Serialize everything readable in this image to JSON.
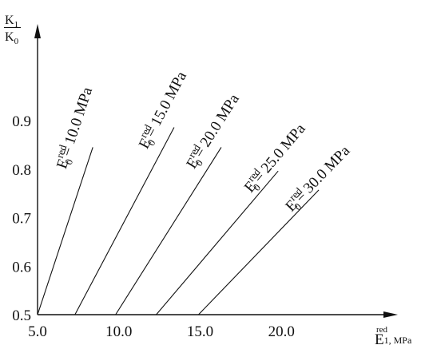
{
  "chart_data": {
    "type": "line",
    "x_ticks": [
      "5.0",
      "10.0",
      "15.0",
      "20.0"
    ],
    "y_ticks": [
      "0.5",
      "0.6",
      "0.7",
      "0.8",
      "0.9"
    ],
    "xlim": [
      5.0,
      24.0
    ],
    "ylim": [
      0.5,
      1.1
    ],
    "grid": false,
    "ylabel": {
      "num_base": "K",
      "num_sub": "1",
      "den_base": "K",
      "den_sub": "0"
    },
    "xlabel": {
      "base": "E",
      "sub": "1, MPa",
      "sup": "red"
    },
    "series": [
      {
        "name": {
          "base": "E",
          "sub": "0",
          "sup": "red",
          "rest": "= 10.0 MPa"
        },
        "x": [
          5.0,
          8.4
        ],
        "y": [
          0.5,
          0.845
        ]
      },
      {
        "name": {
          "base": "E",
          "sub": "0",
          "sup": "red",
          "rest": "= 15.0 MPa"
        },
        "x": [
          7.3,
          13.4
        ],
        "y": [
          0.5,
          0.886
        ]
      },
      {
        "name": {
          "base": "E",
          "sub": "0",
          "sup": "red",
          "rest": "= 20.0 MPa"
        },
        "x": [
          9.8,
          16.3
        ],
        "y": [
          0.5,
          0.845
        ]
      },
      {
        "name": {
          "base": "E",
          "sub": "0",
          "sup": "red",
          "rest": "= 25.0 MPa"
        },
        "x": [
          12.3,
          19.8
        ],
        "y": [
          0.5,
          0.796
        ]
      },
      {
        "name": {
          "base": "E",
          "sub": "0",
          "sup": "red",
          "rest": "= 30.0 MPa"
        },
        "x": [
          14.9,
          22.3
        ],
        "y": [
          0.5,
          0.757
        ]
      }
    ]
  }
}
